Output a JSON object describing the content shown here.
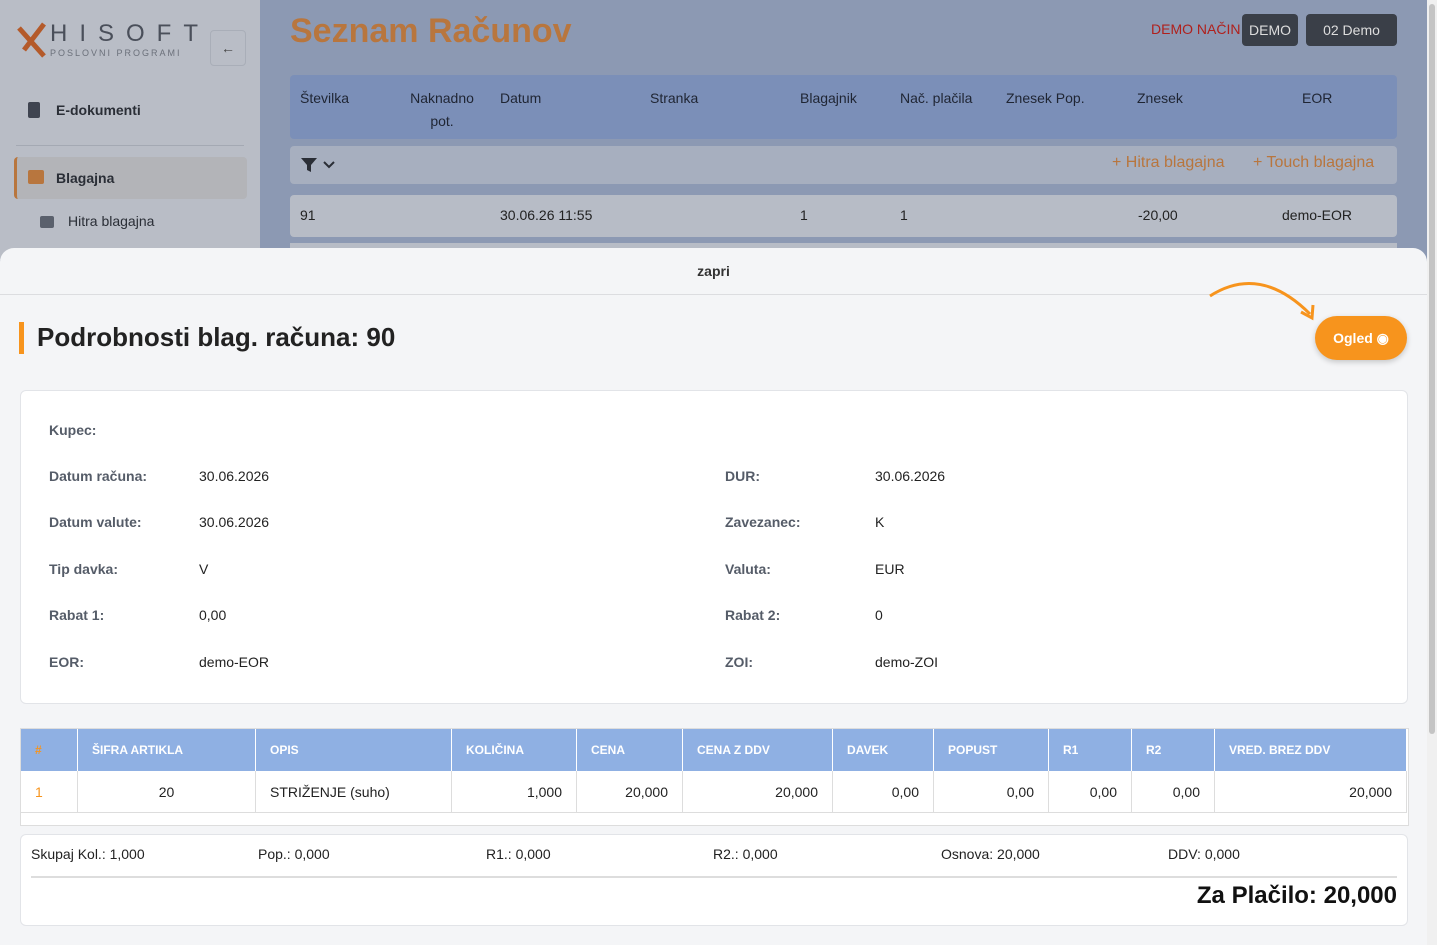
{
  "logo": {
    "brand": "HISOFT",
    "tagline": "POSLOVNI PROGRAMI"
  },
  "sidebar": {
    "items": [
      "E-dokumenti",
      "Blagajna",
      "Hitra blagajna"
    ]
  },
  "header": {
    "title": "Seznam Računov",
    "demo_mode": "DEMO NAČIN",
    "demo_button": "DEMO",
    "user": "02 Demo"
  },
  "list": {
    "columns": [
      "Številka",
      "Naknadno pot.",
      "Datum",
      "Stranka",
      "Blagajnik",
      "Nač. plačila",
      "Znesek Pop.",
      "Znesek",
      "EOR"
    ],
    "toolbar": [
      "Hitra blagajna",
      "Touch blagajna"
    ],
    "row": {
      "stevilka": "91",
      "datum": "30.06.26 11:55",
      "blagajnik": "1",
      "nacin": "1",
      "znesek": "-20,00",
      "eor": "demo-EOR"
    }
  },
  "modal": {
    "close": "zapri",
    "title": "Podrobnosti blag. računa: 90",
    "view_button": "Ogled",
    "details_left": [
      {
        "label": "Kupec:"
      },
      {
        "label": "Datum računa:",
        "value": "30.06.2026"
      },
      {
        "label": "Datum valute:",
        "value": "30.06.2026"
      },
      {
        "label": "Tip davka:",
        "value": "V"
      },
      {
        "label": "Rabat 1:",
        "value": "0,00"
      },
      {
        "label": "EOR:",
        "value": "demo-EOR"
      }
    ],
    "details_right": [
      {
        "label": "DUR:",
        "value": "30.06.2026"
      },
      {
        "label": "Zavezanec:",
        "value": "K"
      },
      {
        "label": "Valuta:",
        "value": "EUR"
      },
      {
        "label": "Rabat 2:",
        "value": "0"
      },
      {
        "label": "ZOI:",
        "value": "demo-ZOI"
      }
    ],
    "table": {
      "columns": [
        "#",
        "ŠIFRA ARTIKLA",
        "OPIS",
        "KOLIČINA",
        "CENA",
        "CENA Z DDV",
        "DAVEK",
        "POPUST",
        "R1",
        "R2",
        "VRED. BREZ DDV"
      ],
      "rows": [
        [
          "1",
          "20",
          "STRIŽENJE (suho)",
          "1,000",
          "20,000",
          "20,000",
          "0,00",
          "0,00",
          "0,00",
          "0,00",
          "20,000"
        ]
      ]
    },
    "totals": [
      "Skupaj Kol.: 1,000",
      "Pop.: 0,000",
      "R1.: 0,000",
      "R2.: 0,000",
      "Osnova: 20,000",
      "DDV: 0,000"
    ],
    "grand_total": "Za Plačilo: 20,000"
  }
}
